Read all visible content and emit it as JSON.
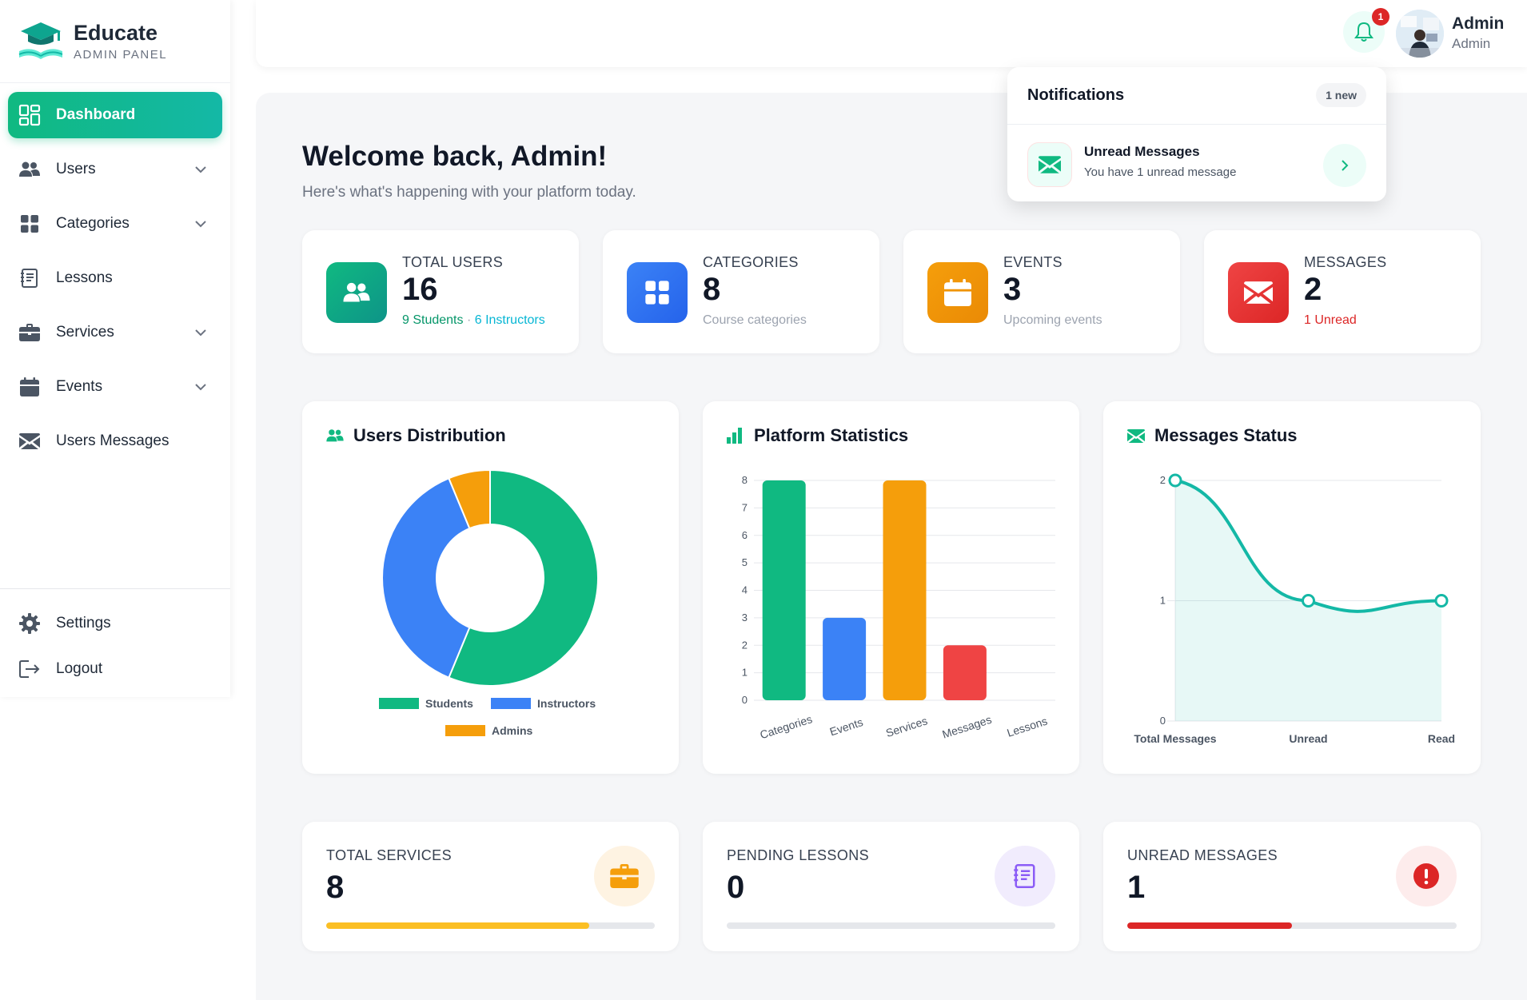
{
  "brand": {
    "name": "Educate",
    "subtitle": "ADMIN PANEL"
  },
  "sidebar": {
    "items": [
      {
        "label": "Dashboard",
        "icon": "dashboard-icon",
        "active": true
      },
      {
        "label": "Users",
        "icon": "users-icon",
        "has_submenu": true
      },
      {
        "label": "Categories",
        "icon": "categories-icon",
        "has_submenu": true
      },
      {
        "label": "Lessons",
        "icon": "lessons-icon"
      },
      {
        "label": "Services",
        "icon": "briefcase-icon",
        "has_submenu": true
      },
      {
        "label": "Events",
        "icon": "calendar-icon",
        "has_submenu": true
      },
      {
        "label": "Users Messages",
        "icon": "envelope-icon"
      }
    ],
    "bottom": [
      {
        "label": "Settings",
        "icon": "gear-icon"
      },
      {
        "label": "Logout",
        "icon": "logout-icon"
      }
    ]
  },
  "topbar": {
    "notification_count": "1",
    "user": {
      "name": "Admin",
      "role": "Admin"
    }
  },
  "notifications": {
    "title": "Notifications",
    "badge": "1 new",
    "items": [
      {
        "title": "Unread Messages",
        "subtitle": "You have 1 unread message",
        "icon": "envelope-icon"
      }
    ]
  },
  "welcome": {
    "title": "Welcome back, Admin!",
    "subtitle": "Here's what's happening with your platform today."
  },
  "stats": [
    {
      "label": "TOTAL USERS",
      "value": "16",
      "sub_a": "9 Students",
      "sub_sep": " · ",
      "sub_b": "6 Instructors",
      "color": "#10b981",
      "icon": "users-icon"
    },
    {
      "label": "CATEGORIES",
      "value": "8",
      "sub": "Course categories",
      "color": "#3b82f6",
      "icon": "grid-icon"
    },
    {
      "label": "EVENTS",
      "value": "3",
      "sub": "Upcoming events",
      "color": "#f59e0b",
      "icon": "calendar-icon"
    },
    {
      "label": "MESSAGES",
      "value": "2",
      "sub": "1 Unread",
      "color": "#ef4444",
      "icon": "envelope-icon"
    }
  ],
  "charts": {
    "users_distribution": {
      "title": "Users Distribution",
      "icon": "users-icon"
    },
    "platform_statistics": {
      "title": "Platform Statistics",
      "icon": "bar-chart-icon"
    },
    "messages_status": {
      "title": "Messages Status",
      "icon": "envelope-icon"
    }
  },
  "chart_data": [
    {
      "type": "pie",
      "title": "Users Distribution",
      "categories": [
        "Students",
        "Instructors",
        "Admins"
      ],
      "values": [
        9,
        6,
        1
      ],
      "colors": [
        "#10b981",
        "#3b82f6",
        "#f59e0b"
      ],
      "donut": true,
      "legend": "bottom"
    },
    {
      "type": "bar",
      "title": "Platform Statistics",
      "categories": [
        "Categories",
        "Events",
        "Services",
        "Messages",
        "Lessons"
      ],
      "values": [
        8,
        3,
        8,
        2,
        0
      ],
      "colors": [
        "#10b981",
        "#3b82f6",
        "#f59e0b",
        "#ef4444",
        "#8b5cf6"
      ],
      "yticks": [
        "0",
        "1",
        "2",
        "3",
        "4",
        "5",
        "6",
        "7",
        "8"
      ],
      "ylim": [
        0,
        8
      ],
      "grid": true
    },
    {
      "type": "area",
      "title": "Messages Status",
      "categories": [
        "Total Messages",
        "Unread",
        "Read"
      ],
      "values": [
        2,
        1,
        1
      ],
      "yticks": [
        "0",
        "1",
        "2"
      ],
      "ylim": [
        0,
        2
      ],
      "color": "#14b8a6",
      "grid": true
    }
  ],
  "bottom_cards": [
    {
      "label": "TOTAL SERVICES",
      "value": "8",
      "progress": 0.8,
      "color": "#fbbf24",
      "icon_bg": "#fef3e2",
      "icon": "briefcase-icon"
    },
    {
      "label": "PENDING LESSONS",
      "value": "0",
      "progress": 0,
      "color": "#8b5cf6",
      "icon_bg": "#f1ecfd",
      "icon": "lessons-icon"
    },
    {
      "label": "UNREAD MESSAGES",
      "value": "1",
      "progress": 0.5,
      "color": "#dc2626",
      "icon_bg": "#fdecec",
      "icon": "alert-icon"
    }
  ]
}
